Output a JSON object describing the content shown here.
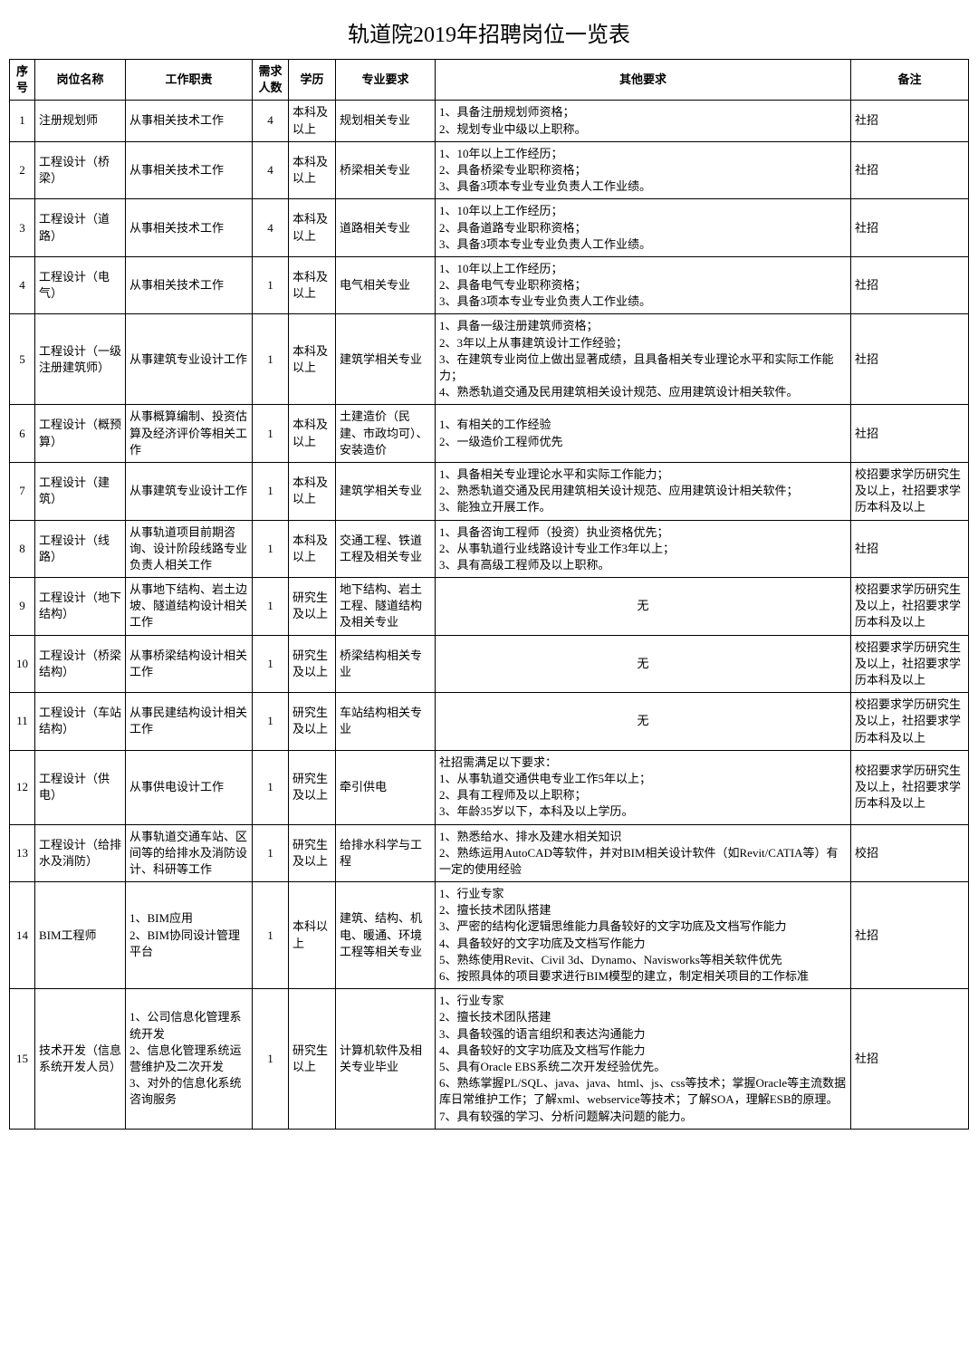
{
  "title": "轨道院2019年招聘岗位一览表",
  "columns": [
    "序号",
    "岗位名称",
    "工作职责",
    "需求人数",
    "学历",
    "专业要求",
    "其他要求",
    "备注"
  ],
  "rows": [
    {
      "idx": "1",
      "name": "注册规划师",
      "duty": "从事相关技术工作",
      "need": "4",
      "edu": "本科及以上",
      "major": "规划相关专业",
      "other": "1、具备注册规划师资格；\n2、规划专业中级以上职称。",
      "note": "社招"
    },
    {
      "idx": "2",
      "name": "工程设计（桥梁）",
      "duty": "从事相关技术工作",
      "need": "4",
      "edu": "本科及以上",
      "major": "桥梁相关专业",
      "other": "1、10年以上工作经历；\n2、具备桥梁专业职称资格；\n3、具备3项本专业专业负责人工作业绩。",
      "note": "社招"
    },
    {
      "idx": "3",
      "name": "工程设计（道路）",
      "duty": "从事相关技术工作",
      "need": "4",
      "edu": "本科及以上",
      "major": "道路相关专业",
      "other": "1、10年以上工作经历；\n2、具备道路专业职称资格；\n3、具备3项本专业专业负责人工作业绩。",
      "note": "社招"
    },
    {
      "idx": "4",
      "name": "工程设计（电气）",
      "duty": "从事相关技术工作",
      "need": "1",
      "edu": "本科及以上",
      "major": "电气相关专业",
      "other": "1、10年以上工作经历；\n2、具备电气专业职称资格；\n3、具备3项本专业专业负责人工作业绩。",
      "note": "社招"
    },
    {
      "idx": "5",
      "name": "工程设计（一级注册建筑师）",
      "duty": "从事建筑专业设计工作",
      "need": "1",
      "edu": "本科及以上",
      "major": "建筑学相关专业",
      "other": "1、具备一级注册建筑师资格；\n2、3年以上从事建筑设计工作经验；\n3、在建筑专业岗位上做出显著成绩，且具备相关专业理论水平和实际工作能力；\n4、熟悉轨道交通及民用建筑相关设计规范、应用建筑设计相关软件。",
      "note": "社招"
    },
    {
      "idx": "6",
      "name": "工程设计（概预算）",
      "duty": "从事概算编制、投资估算及经济评价等相关工作",
      "need": "1",
      "edu": "本科及以上",
      "major": "土建造价（民建、市政均可）、安装造价",
      "other": "1、有相关的工作经验\n2、一级造价工程师优先",
      "note": "社招"
    },
    {
      "idx": "7",
      "name": "工程设计（建筑）",
      "duty": "从事建筑专业设计工作",
      "need": "1",
      "edu": "本科及以上",
      "major": "建筑学相关专业",
      "other": "1、具备相关专业理论水平和实际工作能力；\n2、熟悉轨道交通及民用建筑相关设计规范、应用建筑设计相关软件；\n3、能独立开展工作。",
      "note": "校招要求学历研究生及以上，社招要求学历本科及以上"
    },
    {
      "idx": "8",
      "name": "工程设计（线路）",
      "duty": "从事轨道项目前期咨询、设计阶段线路专业负责人相关工作",
      "need": "1",
      "edu": "本科及以上",
      "major": "交通工程、铁道工程及相关专业",
      "other": "1、具备咨询工程师（投资）执业资格优先；\n2、从事轨道行业线路设计专业工作3年以上；\n3、具有高级工程师及以上职称。",
      "note": "社招"
    },
    {
      "idx": "9",
      "name": "工程设计（地下结构）",
      "duty": "从事地下结构、岩土边坡、隧道结构设计相关工作",
      "need": "1",
      "edu": "研究生及以上",
      "major": "地下结构、岩土工程、隧道结构及相关专业",
      "other": "无",
      "note": "校招要求学历研究生及以上，社招要求学历本科及以上"
    },
    {
      "idx": "10",
      "name": "工程设计（桥梁结构）",
      "duty": "从事桥梁结构设计相关工作",
      "need": "1",
      "edu": "研究生及以上",
      "major": "桥梁结构相关专业",
      "other": "无",
      "note": "校招要求学历研究生及以上，社招要求学历本科及以上"
    },
    {
      "idx": "11",
      "name": "工程设计（车站结构）",
      "duty": "从事民建结构设计相关工作",
      "need": "1",
      "edu": "研究生及以上",
      "major": "车站结构相关专业",
      "other": "无",
      "note": "校招要求学历研究生及以上，社招要求学历本科及以上"
    },
    {
      "idx": "12",
      "name": "工程设计（供电）",
      "duty": "从事供电设计工作",
      "need": "1",
      "edu": "研究生及以上",
      "major": "牵引供电",
      "other": "社招需满足以下要求：\n1、从事轨道交通供电专业工作5年以上；\n2、具有工程师及以上职称；\n3、年龄35岁以下，本科及以上学历。",
      "note": "校招要求学历研究生及以上，社招要求学历本科及以上"
    },
    {
      "idx": "13",
      "name": "工程设计（给排水及消防）",
      "duty": "从事轨道交通车站、区间等的给排水及消防设计、科研等工作",
      "need": "1",
      "edu": "研究生及以上",
      "major": "给排水科学与工程",
      "other": "1、熟悉给水、排水及建水相关知识\n2、熟练运用AutoCAD等软件，并对BIM相关设计软件（如Revit/CATIA等）有一定的使用经验",
      "note": "校招"
    },
    {
      "idx": "14",
      "name": "BIM工程师",
      "duty": "1、BIM应用\n2、BIM协同设计管理平台",
      "need": "1",
      "edu": "本科以上",
      "major": "建筑、结构、机电、暖通、环境工程等相关专业",
      "other": "1、行业专家\n2、擅长技术团队搭建\n3、严密的结构化逻辑思维能力具备较好的文字功底及文档写作能力\n4、具备较好的文字功底及文档写作能力\n5、熟练使用Revit、Civil 3d、Dynamo、Navisworks等相关软件优先\n6、按照具体的项目要求进行BIM模型的建立，制定相关项目的工作标准",
      "note": "社招"
    },
    {
      "idx": "15",
      "name": "技术开发（信息系统开发人员）",
      "duty": "1、公司信息化管理系统开发\n2、信息化管理系统运营维护及二次开发\n3、对外的信息化系统咨询服务",
      "need": "1",
      "edu": "研究生以上",
      "major": "计算机软件及相关专业毕业",
      "other": "1、行业专家\n2、擅长技术团队搭建\n3、具备较强的语言组织和表达沟通能力\n4、具备较好的文字功底及文档写作能力\n5、具有Oracle EBS系统二次开发经验优先。\n6、熟练掌握PL/SQL、java、java、html、js、css等技术；掌握Oracle等主流数据库日常维护工作；了解xml、webservice等技术；了解SOA，理解ESB的原理。\n7、具有较强的学习、分析问题解决问题的能力。",
      "note": "社招"
    }
  ],
  "align": {
    "idx": "c",
    "name": "l",
    "duty": "l",
    "need": "c",
    "edu": "l",
    "major": "l",
    "other": "l",
    "note": "l"
  },
  "other_center_rows": [
    "9",
    "10",
    "11"
  ]
}
